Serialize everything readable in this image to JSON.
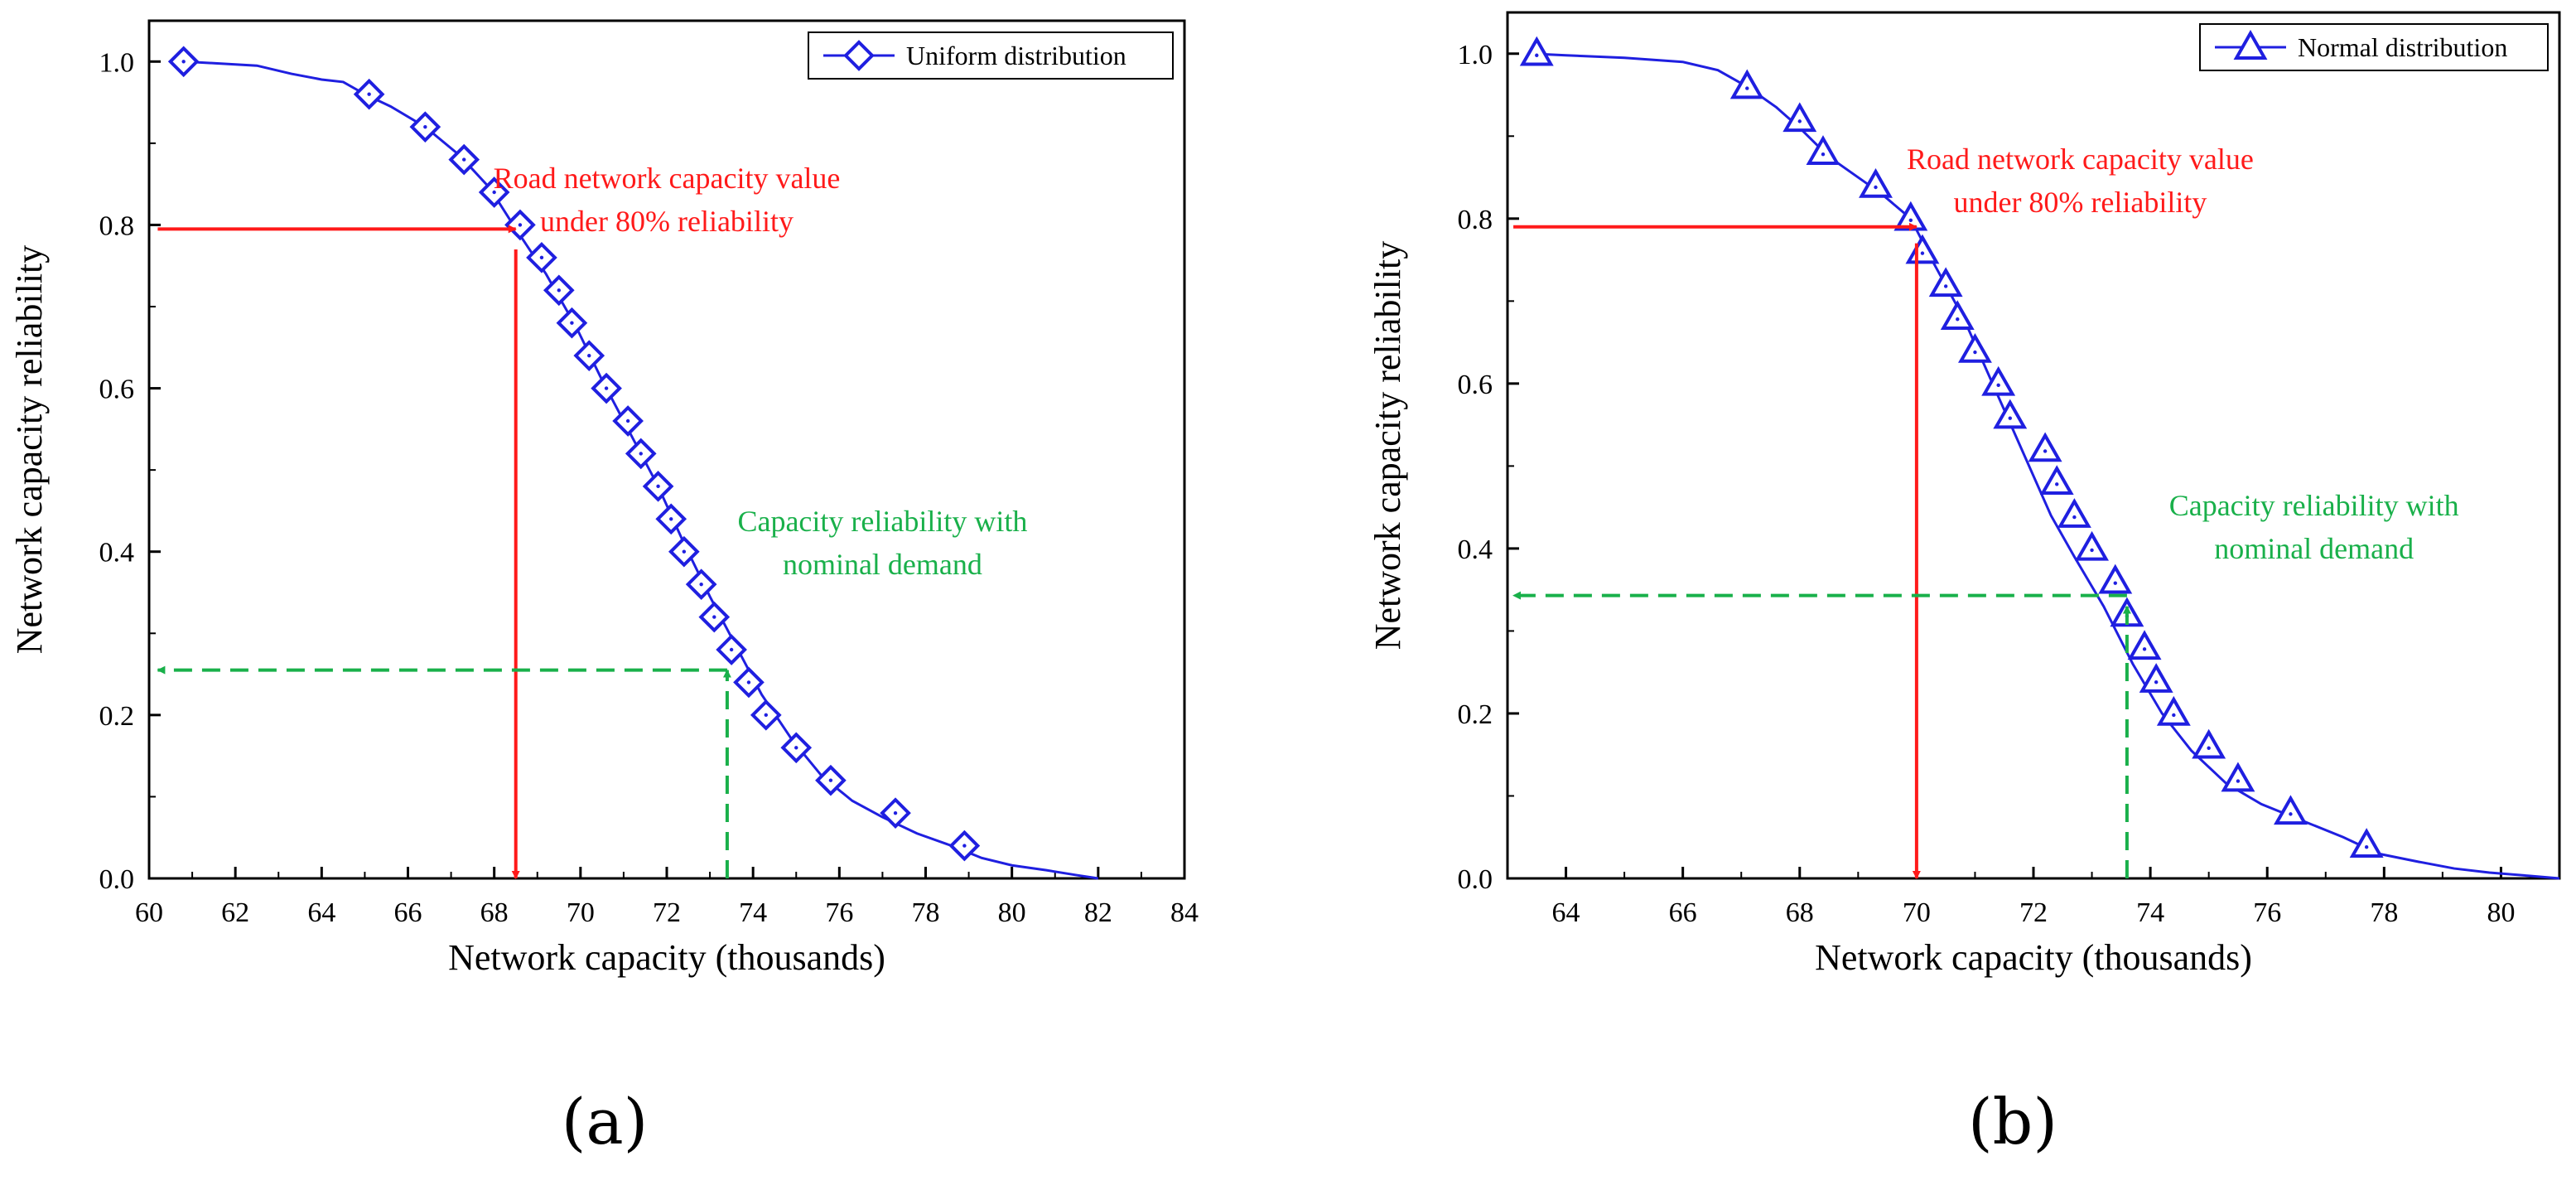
{
  "chart_data": [
    {
      "panel_label": "(a)",
      "type": "line",
      "title": "",
      "xlabel": "Network capacity (thousands)",
      "ylabel": "Network capacity reliability",
      "xlim": [
        60,
        84
      ],
      "ylim": [
        0,
        1.05
      ],
      "xticks": [
        60,
        62,
        64,
        66,
        68,
        70,
        72,
        74,
        76,
        78,
        80,
        82,
        84
      ],
      "xtick_labels": [
        "60",
        "62",
        "64",
        "66",
        "68",
        "70",
        "72",
        "74",
        "76",
        "78",
        "80",
        "82",
        "84"
      ],
      "yticks": [
        0,
        0.2,
        0.4,
        0.6,
        0.8,
        1.0
      ],
      "ytick_labels": [
        "0.0",
        "0.2",
        "0.4",
        "0.6",
        "0.8",
        "1.0"
      ],
      "legend_position": "top-right",
      "series": [
        {
          "name": "Uniform distribution",
          "color": "#1f1fe0",
          "marker": "diamond",
          "curve_x": [
            60.8,
            61.5,
            62.5,
            63.3,
            64.0,
            64.5,
            65.0,
            65.6,
            66.4,
            67.2,
            67.9,
            68.5,
            69.2,
            69.9,
            70.5,
            71.1,
            71.8,
            72.4,
            73.0,
            73.6,
            74.2,
            74.9,
            75.6,
            76.3,
            77.0,
            77.8,
            78.6,
            79.3,
            80.0,
            80.8,
            81.5,
            82.0
          ],
          "curve_y": [
            1.0,
            0.998,
            0.995,
            0.985,
            0.978,
            0.975,
            0.96,
            0.945,
            0.92,
            0.885,
            0.845,
            0.795,
            0.74,
            0.675,
            0.61,
            0.55,
            0.48,
            0.41,
            0.345,
            0.285,
            0.225,
            0.17,
            0.125,
            0.095,
            0.075,
            0.055,
            0.04,
            0.025,
            0.016,
            0.01,
            0.004,
            0.0
          ],
          "markers_x": [
            60.8,
            65.1,
            66.4,
            67.3,
            68.0,
            68.6,
            69.1,
            69.5,
            69.8,
            70.2,
            70.6,
            71.1,
            71.4,
            71.8,
            72.1,
            72.4,
            72.8,
            73.1,
            73.5,
            73.9,
            74.3,
            75.0,
            75.8,
            77.3,
            78.9
          ],
          "markers_y": [
            1.0,
            0.96,
            0.92,
            0.88,
            0.84,
            0.8,
            0.76,
            0.72,
            0.68,
            0.64,
            0.6,
            0.56,
            0.52,
            0.48,
            0.44,
            0.4,
            0.36,
            0.32,
            0.28,
            0.24,
            0.2,
            0.16,
            0.12,
            0.08,
            0.04
          ]
        }
      ],
      "annotations": [
        {
          "name": "reliability-80",
          "text_lines": [
            "Road network capacity value",
            "under 80% reliability"
          ],
          "color": "#ff1a1a",
          "style": "solid",
          "text_anchor": [
            72.0,
            0.845
          ],
          "h_arrow": {
            "from": [
              60.2,
              0.795
            ],
            "to": [
              68.5,
              0.795
            ]
          },
          "v_arrow": {
            "from": [
              68.5,
              0.77
            ],
            "to": [
              68.5,
              0.0
            ]
          }
        },
        {
          "name": "nominal-demand",
          "text_lines": [
            "Capacity reliability with",
            "nominal demand"
          ],
          "color": "#19b04a",
          "style": "dashed",
          "text_anchor": [
            77.0,
            0.425
          ],
          "h_arrow": {
            "from": [
              73.4,
              0.255
            ],
            "to": [
              60.2,
              0.255
            ]
          },
          "v_arrow": {
            "from": [
              73.4,
              0.0
            ],
            "to": [
              73.4,
              0.255
            ]
          }
        }
      ]
    },
    {
      "panel_label": "(b)",
      "type": "line",
      "title": "",
      "xlabel": "Network capacity (thousands)",
      "ylabel": "Network capacity reliability",
      "xlim": [
        63.0,
        81.0
      ],
      "ylim": [
        0,
        1.05
      ],
      "xticks": [
        64,
        66,
        68,
        70,
        72,
        74,
        76,
        78,
        80
      ],
      "xtick_labels": [
        "64",
        "66",
        "68",
        "70",
        "72",
        "74",
        "76",
        "78",
        "80"
      ],
      "yticks": [
        0,
        0.2,
        0.4,
        0.6,
        0.8,
        1.0
      ],
      "ytick_labels": [
        "0.0",
        "0.2",
        "0.4",
        "0.6",
        "0.8",
        "1.0"
      ],
      "legend_position": "top-right",
      "series": [
        {
          "name": "Normal distribution",
          "color": "#1f1fe0",
          "marker": "triangle",
          "curve_x": [
            63.4,
            64.0,
            65.0,
            66.0,
            66.6,
            67.1,
            67.6,
            68.0,
            68.5,
            69.0,
            69.4,
            69.9,
            70.3,
            70.8,
            71.3,
            71.8,
            72.3,
            72.7,
            73.2,
            73.7,
            74.2,
            74.7,
            75.3,
            75.9,
            76.6,
            77.3,
            77.9,
            78.6,
            79.2,
            79.8,
            80.5,
            81.0
          ],
          "curve_y": [
            1.0,
            0.998,
            0.995,
            0.99,
            0.98,
            0.96,
            0.935,
            0.91,
            0.875,
            0.85,
            0.83,
            0.8,
            0.745,
            0.68,
            0.6,
            0.52,
            0.44,
            0.39,
            0.33,
            0.26,
            0.2,
            0.155,
            0.115,
            0.09,
            0.07,
            0.05,
            0.03,
            0.02,
            0.012,
            0.007,
            0.003,
            0.0
          ],
          "markers_x": [
            63.5,
            67.1,
            68.0,
            68.4,
            69.3,
            69.9,
            70.1,
            70.5,
            70.7,
            71.0,
            71.4,
            71.6,
            72.2,
            72.4,
            72.7,
            73.0,
            73.4,
            73.6,
            73.9,
            74.1,
            74.4,
            75.0,
            75.5,
            76.4,
            77.7
          ],
          "markers_y": [
            1.0,
            0.96,
            0.92,
            0.88,
            0.84,
            0.8,
            0.76,
            0.72,
            0.68,
            0.64,
            0.6,
            0.56,
            0.52,
            0.48,
            0.44,
            0.4,
            0.36,
            0.32,
            0.28,
            0.24,
            0.2,
            0.16,
            0.12,
            0.08,
            0.04
          ]
        }
      ],
      "annotations": [
        {
          "name": "reliability-80",
          "text_lines": [
            "Road network capacity value",
            "under 80% reliability"
          ],
          "color": "#ff1a1a",
          "style": "solid",
          "text_anchor": [
            72.8,
            0.86
          ],
          "h_arrow": {
            "from": [
              63.1,
              0.79
            ],
            "to": [
              70.0,
              0.79
            ]
          },
          "v_arrow": {
            "from": [
              70.0,
              0.77
            ],
            "to": [
              70.0,
              0.0
            ]
          }
        },
        {
          "name": "nominal-demand",
          "text_lines": [
            "Capacity reliability with",
            "nominal demand"
          ],
          "color": "#19b04a",
          "style": "dashed",
          "text_anchor": [
            76.8,
            0.44
          ],
          "h_arrow": {
            "from": [
              73.6,
              0.343
            ],
            "to": [
              63.1,
              0.343
            ]
          },
          "v_arrow": {
            "from": [
              73.6,
              0.0
            ],
            "to": [
              73.6,
              0.33
            ]
          }
        }
      ]
    }
  ]
}
